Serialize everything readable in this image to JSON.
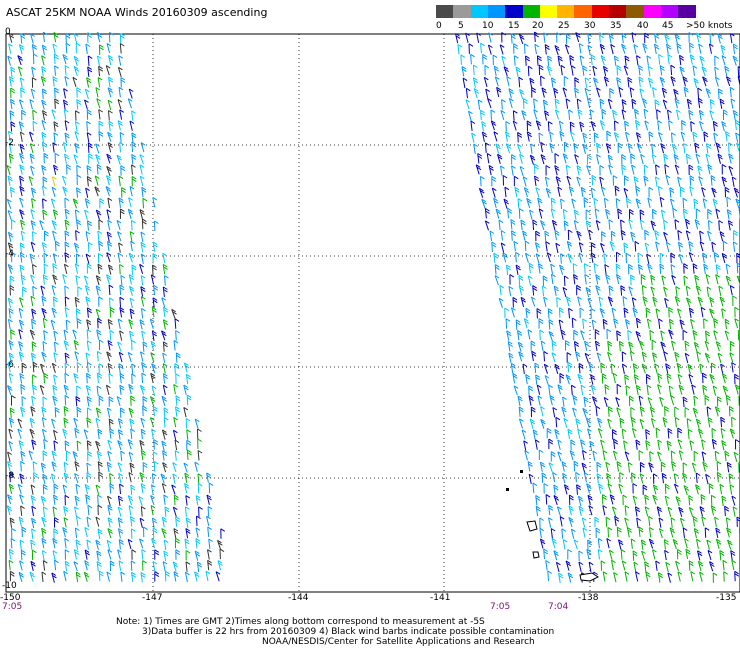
{
  "title": "ASCAT 25KM NOAA Winds 20160309 ascending",
  "colorbar": {
    "labels": [
      "0",
      "5",
      "10",
      "15",
      "20",
      "25",
      "30",
      "35",
      "40",
      "45",
      ">50 knots"
    ],
    "colors": [
      "#4a4a4a",
      "#9a9a9a",
      "#00c8ff",
      "#0096ff",
      "#0000c8",
      "#00b400",
      "#ffff00",
      "#ffb400",
      "#ff6400",
      "#e60000",
      "#b40000",
      "#8c5a00",
      "#ff00ff",
      "#b400ff",
      "#5a00a0"
    ]
  },
  "map": {
    "lat_labels": [
      "0",
      "-2",
      "-4",
      "-6",
      "-8",
      "-10"
    ],
    "lon_labels": [
      "-150",
      "-147",
      "-144",
      "-141",
      "-138",
      "-135"
    ],
    "time_labels": [
      "7:05",
      "7:05",
      "7:04"
    ]
  },
  "notes": {
    "line1": "Note: 1) Times are GMT 2)Times along bottom correspond to measurement at -5S",
    "line2": "3)Data buffer is 22 hrs from 20160309 4) Black wind barbs indicate possible contamination",
    "line3": "NOAA/NESDIS/Center for Satellite Applications and Research"
  }
}
